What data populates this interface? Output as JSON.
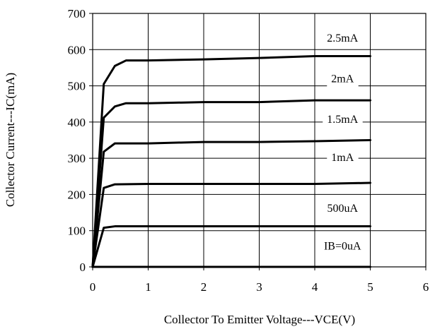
{
  "chart_data": {
    "type": "line",
    "title": "",
    "xlabel": "Collector To Emitter Voltage---VCE(V)",
    "ylabel": "Collector Current---IC(mA)",
    "xlim": [
      0,
      6
    ],
    "ylim": [
      0,
      700
    ],
    "xticks": [
      0,
      1,
      2,
      3,
      4,
      5,
      6
    ],
    "yticks": [
      0,
      100,
      200,
      300,
      400,
      500,
      600,
      700
    ],
    "grid": true,
    "line_color": "#000000",
    "series": [
      {
        "name": "IB=0uA",
        "points": [
          [
            0,
            0
          ],
          [
            5,
            0
          ]
        ]
      },
      {
        "name": "500uA",
        "points": [
          [
            0,
            0
          ],
          [
            0.2,
            108
          ],
          [
            0.4,
            112
          ],
          [
            5,
            112
          ]
        ]
      },
      {
        "name": "1mA",
        "points": [
          [
            0,
            0
          ],
          [
            0.2,
            218
          ],
          [
            0.4,
            228
          ],
          [
            1,
            229
          ],
          [
            2,
            229
          ],
          [
            3,
            229
          ],
          [
            4,
            229
          ],
          [
            5,
            232
          ]
        ]
      },
      {
        "name": "1.5mA",
        "points": [
          [
            0,
            0
          ],
          [
            0.2,
            318
          ],
          [
            0.4,
            341
          ],
          [
            1,
            341
          ],
          [
            2,
            345
          ],
          [
            3,
            345
          ],
          [
            4,
            347
          ],
          [
            5,
            350
          ]
        ]
      },
      {
        "name": "2mA",
        "points": [
          [
            0,
            0
          ],
          [
            0.2,
            412
          ],
          [
            0.4,
            443
          ],
          [
            0.6,
            452
          ],
          [
            1,
            452
          ],
          [
            2,
            455
          ],
          [
            3,
            455
          ],
          [
            4,
            460
          ],
          [
            5,
            460
          ]
        ]
      },
      {
        "name": "2.5mA",
        "points": [
          [
            0,
            0
          ],
          [
            0.2,
            505
          ],
          [
            0.4,
            555
          ],
          [
            0.6,
            570
          ],
          [
            1,
            570
          ],
          [
            2,
            573
          ],
          [
            3,
            577
          ],
          [
            4,
            582
          ],
          [
            5,
            582
          ]
        ]
      }
    ],
    "label_values": [
      {
        "series": "2.5mA",
        "x": 4.5,
        "y": 622
      },
      {
        "series": "2mA",
        "x": 4.5,
        "y": 510
      },
      {
        "series": "1.5mA",
        "x": 4.5,
        "y": 398
      },
      {
        "series": "1mA",
        "x": 4.5,
        "y": 292
      },
      {
        "series": "500uA",
        "x": 4.5,
        "y": 152
      },
      {
        "series": "IB=0uA",
        "x": 4.5,
        "y": 48
      }
    ]
  }
}
